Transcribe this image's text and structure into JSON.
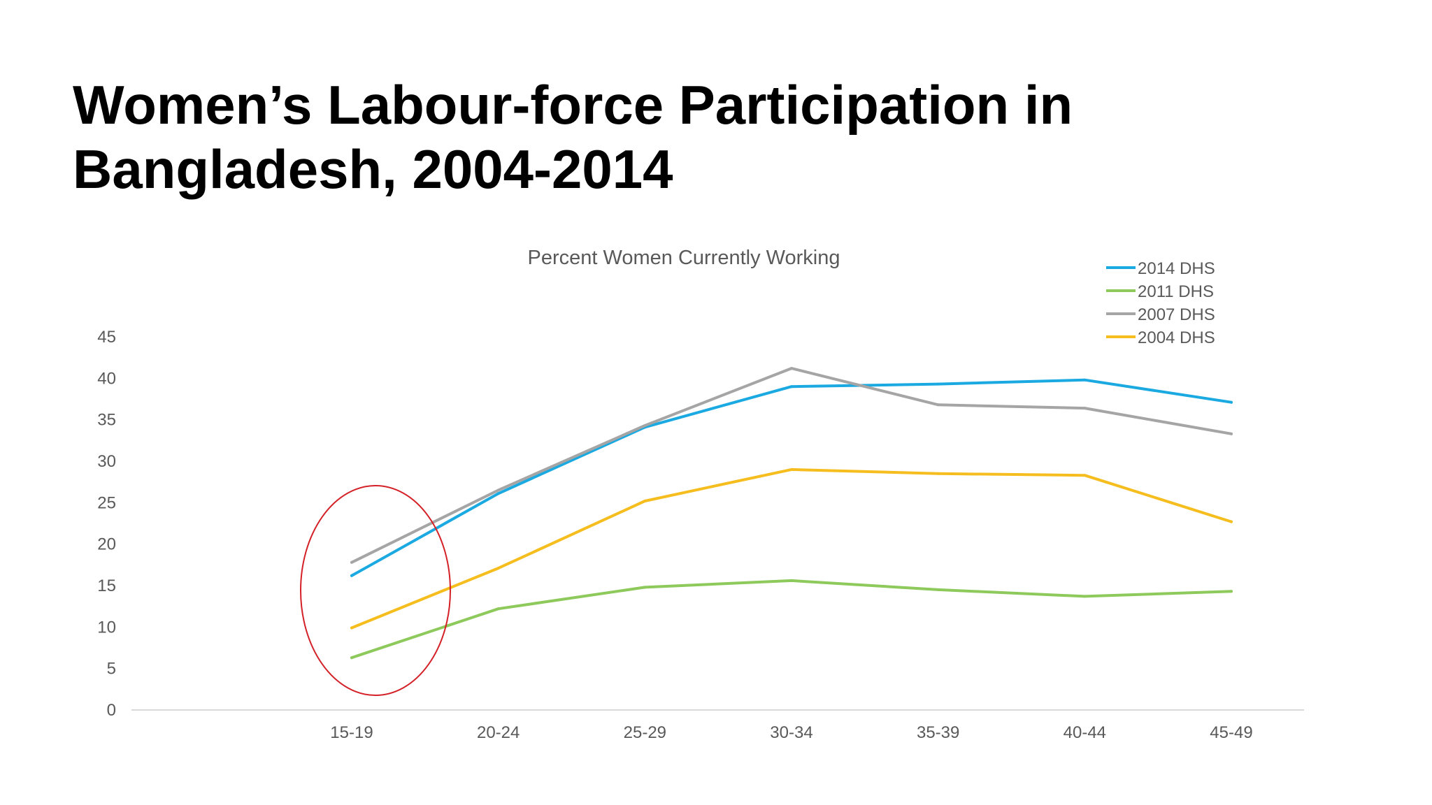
{
  "slide": {
    "title_line1": "Women’s Labour-force Participation in",
    "title_line2": "Bangladesh, 2004-2014"
  },
  "chart_data": {
    "type": "line",
    "title": "Percent Women Currently Working",
    "xlabel": "",
    "ylabel": "",
    "categories": [
      "15-19",
      "20-24",
      "25-29",
      "30-34",
      "35-39",
      "40-44",
      "45-49"
    ],
    "ylim": [
      0,
      45
    ],
    "yticks": [
      0,
      5,
      10,
      15,
      20,
      25,
      30,
      35,
      40,
      45
    ],
    "grid": false,
    "legend_position": "top-right",
    "series": [
      {
        "name": "2014 DHS",
        "color": "#1AA9E0",
        "values": [
          16.2,
          26.1,
          34.1,
          39.0,
          39.3,
          39.8,
          37.1
        ]
      },
      {
        "name": "2011 DHS",
        "color": "#8DC95B",
        "values": [
          6.3,
          12.2,
          14.8,
          15.6,
          14.5,
          13.7,
          14.3
        ]
      },
      {
        "name": "2007 DHS",
        "color": "#A5A5A5",
        "values": [
          17.8,
          26.5,
          34.3,
          41.2,
          36.8,
          36.4,
          33.3
        ]
      },
      {
        "name": "2004 DHS",
        "color": "#F5BE1E",
        "values": [
          9.9,
          17.1,
          25.2,
          29.0,
          28.5,
          28.3,
          22.7
        ]
      }
    ],
    "annotation": {
      "type": "ellipse",
      "color": "#D42027",
      "category": "15-19"
    }
  }
}
